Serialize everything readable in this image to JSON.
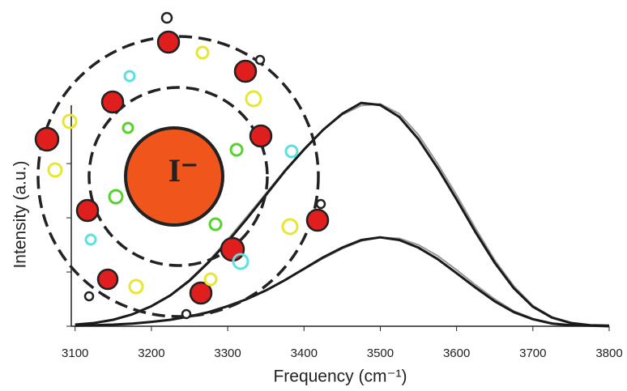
{
  "chart_data": {
    "type": "line",
    "x_label": "Frequency (cm⁻¹)",
    "y_label": "Intensity (a.u.)",
    "annotation": "I⁻",
    "x": [
      3100,
      3125,
      3150,
      3175,
      3200,
      3225,
      3250,
      3275,
      3300,
      3325,
      3350,
      3375,
      3400,
      3425,
      3450,
      3475,
      3500,
      3525,
      3550,
      3575,
      3600,
      3625,
      3650,
      3675,
      3700,
      3725,
      3750,
      3775,
      3800
    ],
    "series": [
      {
        "color": "#1a1a1a",
        "values": [
          0.03,
          0.06,
          0.12,
          0.22,
          0.37,
          0.57,
          0.84,
          1.18,
          1.56,
          1.98,
          2.42,
          2.86,
          3.26,
          3.62,
          3.92,
          4.12,
          4.08,
          3.86,
          3.45,
          2.92,
          2.34,
          1.73,
          1.17,
          0.7,
          0.36,
          0.16,
          0.06,
          0.02,
          0.01
        ]
      },
      {
        "color": "#1a1a1a",
        "values": [
          0.01,
          0.02,
          0.03,
          0.05,
          0.08,
          0.12,
          0.18,
          0.26,
          0.37,
          0.5,
          0.66,
          0.85,
          1.06,
          1.27,
          1.45,
          1.59,
          1.64,
          1.59,
          1.45,
          1.24,
          0.98,
          0.71,
          0.46,
          0.26,
          0.13,
          0.05,
          0.02,
          0.01,
          0.0
        ]
      },
      {
        "color": "#999999",
        "values": [
          0.03,
          0.06,
          0.12,
          0.22,
          0.37,
          0.58,
          0.86,
          1.2,
          1.6,
          2.02,
          2.45,
          2.88,
          3.27,
          3.62,
          3.9,
          4.07,
          4.1,
          3.92,
          3.53,
          3.0,
          2.42,
          1.8,
          1.22,
          0.74,
          0.38,
          0.17,
          0.06,
          0.02,
          0.01
        ]
      },
      {
        "color": "#999999",
        "values": [
          0.01,
          0.02,
          0.03,
          0.05,
          0.08,
          0.12,
          0.18,
          0.26,
          0.37,
          0.5,
          0.66,
          0.85,
          1.05,
          1.25,
          1.43,
          1.57,
          1.64,
          1.62,
          1.5,
          1.3,
          1.04,
          0.76,
          0.5,
          0.28,
          0.14,
          0.06,
          0.02,
          0.01,
          0.0
        ]
      }
    ],
    "xlim": [
      3095,
      3800
    ],
    "xticks": [
      3100,
      3200,
      3300,
      3400,
      3500,
      3600,
      3700,
      3800
    ],
    "ylim": [
      0,
      4.3
    ],
    "yticks": [
      0,
      1,
      2,
      3
    ]
  }
}
